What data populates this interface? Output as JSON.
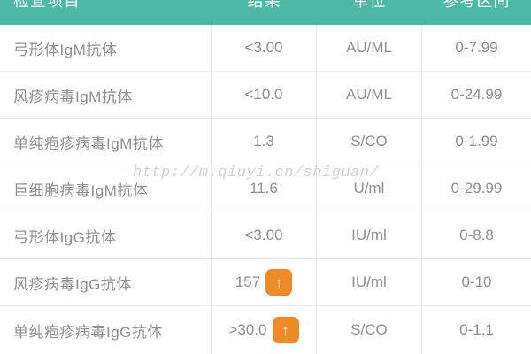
{
  "table": {
    "header": {
      "item": "检查项目",
      "result": "结果",
      "unit": "单位",
      "range": "参考区间"
    },
    "rows": [
      {
        "item": "弓形体IgM抗体",
        "result": "<3.00",
        "flag": false,
        "unit": "AU/ML",
        "range": "0-7.99"
      },
      {
        "item": "风疹病毒IgM抗体",
        "result": "<10.0",
        "flag": false,
        "unit": "AU/ML",
        "range": "0-24.99"
      },
      {
        "item": "单纯疱疹病毒IgM抗体",
        "result": "1.3",
        "flag": false,
        "unit": "S/CO",
        "range": "0-1.99"
      },
      {
        "item": "巨细胞病毒IgM抗体",
        "result": "11.6",
        "flag": false,
        "unit": "U/ml",
        "range": "0-29.99"
      },
      {
        "item": "弓形体IgG抗体",
        "result": "<3.00",
        "flag": false,
        "unit": "IU/ml",
        "range": "0-8.8"
      },
      {
        "item": "风疹病毒IgG抗体",
        "result": "157",
        "flag": true,
        "unit": "IU/ml",
        "range": "0-10"
      },
      {
        "item": "单纯疱疹病毒IgG抗体",
        "result": ">30.0",
        "flag": true,
        "unit": "S/CO",
        "range": "0-1.1"
      }
    ],
    "flag_icon": "↑"
  },
  "watermark": "http://m.qiuyi.cn/shiguan/",
  "colors": {
    "header_bg": "#4cb8a6",
    "header_text": "#ffffff",
    "row_text": "#8f8f8f",
    "divider": "#ececec",
    "flag_bg": "#ee8b25",
    "flag_arrow": "#ffffff",
    "watermark_text": "#d4d4d4"
  }
}
